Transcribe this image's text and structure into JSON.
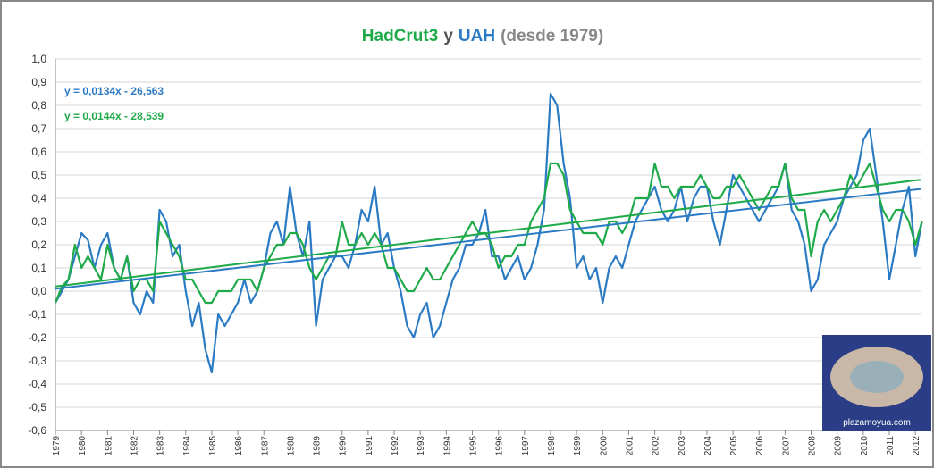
{
  "chart_data": {
    "type": "line",
    "title_joiner": "y",
    "title_suffix": "(desde 1979)",
    "x": [
      1979,
      1979.25,
      1979.5,
      1979.75,
      1980,
      1980.25,
      1980.5,
      1980.75,
      1981,
      1981.25,
      1981.5,
      1981.75,
      1982,
      1982.25,
      1982.5,
      1982.75,
      1983,
      1983.25,
      1983.5,
      1983.75,
      1984,
      1984.25,
      1984.5,
      1984.75,
      1985,
      1985.25,
      1985.5,
      1985.75,
      1986,
      1986.25,
      1986.5,
      1986.75,
      1987,
      1987.25,
      1987.5,
      1987.75,
      1988,
      1988.25,
      1988.5,
      1988.75,
      1989,
      1989.25,
      1989.5,
      1989.75,
      1990,
      1990.25,
      1990.5,
      1990.75,
      1991,
      1991.25,
      1991.5,
      1991.75,
      1992,
      1992.25,
      1992.5,
      1992.75,
      1993,
      1993.25,
      1993.5,
      1993.75,
      1994,
      1994.25,
      1994.5,
      1994.75,
      1995,
      1995.25,
      1995.5,
      1995.75,
      1996,
      1996.25,
      1996.5,
      1996.75,
      1997,
      1997.25,
      1997.5,
      1997.75,
      1998,
      1998.25,
      1998.5,
      1998.75,
      1999,
      1999.25,
      1999.5,
      1999.75,
      2000,
      2000.25,
      2000.5,
      2000.75,
      2001,
      2001.25,
      2001.5,
      2001.75,
      2002,
      2002.25,
      2002.5,
      2002.75,
      2003,
      2003.25,
      2003.5,
      2003.75,
      2004,
      2004.25,
      2004.5,
      2004.75,
      2005,
      2005.25,
      2005.5,
      2005.75,
      2006,
      2006.25,
      2006.5,
      2006.75,
      2007,
      2007.25,
      2007.5,
      2007.75,
      2008,
      2008.25,
      2008.5,
      2008.75,
      2009,
      2009.25,
      2009.5,
      2009.75,
      2010,
      2010.25,
      2010.5,
      2010.75,
      2011,
      2011.25,
      2011.5,
      2011.75,
      2012,
      2012.25
    ],
    "series": [
      {
        "name": "HadCrut3",
        "color": "#1faa4a",
        "values": [
          -0.05,
          0.02,
          0.05,
          0.2,
          0.1,
          0.15,
          0.1,
          0.05,
          0.2,
          0.1,
          0.05,
          0.15,
          0.0,
          0.05,
          0.05,
          0.0,
          0.3,
          0.25,
          0.2,
          0.15,
          0.05,
          0.05,
          0.0,
          -0.05,
          -0.05,
          0.0,
          0.0,
          0.0,
          0.05,
          0.05,
          0.05,
          0.0,
          0.1,
          0.15,
          0.2,
          0.2,
          0.25,
          0.25,
          0.2,
          0.1,
          0.05,
          0.1,
          0.15,
          0.15,
          0.3,
          0.2,
          0.2,
          0.25,
          0.2,
          0.25,
          0.2,
          0.1,
          0.1,
          0.05,
          0.0,
          0.0,
          0.05,
          0.1,
          0.05,
          0.05,
          0.1,
          0.15,
          0.2,
          0.25,
          0.3,
          0.25,
          0.25,
          0.2,
          0.1,
          0.15,
          0.15,
          0.2,
          0.2,
          0.3,
          0.35,
          0.4,
          0.55,
          0.55,
          0.5,
          0.35,
          0.3,
          0.25,
          0.25,
          0.25,
          0.2,
          0.3,
          0.3,
          0.25,
          0.3,
          0.4,
          0.4,
          0.4,
          0.55,
          0.45,
          0.45,
          0.4,
          0.45,
          0.45,
          0.45,
          0.5,
          0.45,
          0.4,
          0.4,
          0.45,
          0.45,
          0.5,
          0.45,
          0.4,
          0.35,
          0.4,
          0.45,
          0.45,
          0.55,
          0.4,
          0.35,
          0.35,
          0.15,
          0.3,
          0.35,
          0.3,
          0.35,
          0.4,
          0.5,
          0.45,
          0.5,
          0.55,
          0.45,
          0.35,
          0.3,
          0.35,
          0.35,
          0.3,
          0.2,
          0.3
        ]
      },
      {
        "name": "UAH",
        "color": "#2b7bc4",
        "values": [
          -0.05,
          0.0,
          0.05,
          0.15,
          0.25,
          0.22,
          0.1,
          0.2,
          0.25,
          0.1,
          0.05,
          0.15,
          -0.05,
          -0.1,
          0.0,
          -0.05,
          0.35,
          0.3,
          0.15,
          0.2,
          0.0,
          -0.15,
          -0.05,
          -0.25,
          -0.35,
          -0.1,
          -0.15,
          -0.1,
          -0.05,
          0.05,
          -0.05,
          0.0,
          0.1,
          0.25,
          0.3,
          0.2,
          0.45,
          0.25,
          0.15,
          0.3,
          -0.15,
          0.05,
          0.1,
          0.15,
          0.15,
          0.1,
          0.2,
          0.35,
          0.3,
          0.45,
          0.2,
          0.25,
          0.1,
          0.0,
          -0.15,
          -0.2,
          -0.1,
          -0.05,
          -0.2,
          -0.15,
          -0.05,
          0.05,
          0.1,
          0.2,
          0.2,
          0.25,
          0.35,
          0.15,
          0.15,
          0.05,
          0.1,
          0.15,
          0.05,
          0.1,
          0.2,
          0.35,
          0.85,
          0.8,
          0.55,
          0.4,
          0.1,
          0.15,
          0.05,
          0.1,
          -0.05,
          0.1,
          0.15,
          0.1,
          0.2,
          0.3,
          0.35,
          0.4,
          0.45,
          0.35,
          0.3,
          0.35,
          0.45,
          0.3,
          0.4,
          0.45,
          0.45,
          0.3,
          0.2,
          0.35,
          0.5,
          0.45,
          0.4,
          0.35,
          0.3,
          0.35,
          0.4,
          0.45,
          0.55,
          0.35,
          0.3,
          0.2,
          0.0,
          0.05,
          0.2,
          0.25,
          0.3,
          0.4,
          0.45,
          0.5,
          0.65,
          0.7,
          0.5,
          0.3,
          0.05,
          0.2,
          0.35,
          0.45,
          0.15,
          0.3
        ]
      }
    ],
    "trendlines": [
      {
        "label": "y = 0,0134x - 26,563",
        "color": "#2b7bc4",
        "x": [
          1979,
          2012.2
        ],
        "values": [
          0.01,
          0.44
        ]
      },
      {
        "label": "y = 0,0144x - 28,539",
        "color": "#1faa4a",
        "x": [
          1979,
          2012.2
        ],
        "values": [
          0.02,
          0.48
        ]
      }
    ],
    "xlim": [
      1979,
      2012.2
    ],
    "xticks": [
      1979,
      1980,
      1981,
      1982,
      1983,
      1984,
      1985,
      1986,
      1987,
      1988,
      1989,
      1990,
      1991,
      1992,
      1993,
      1994,
      1995,
      1996,
      1997,
      1998,
      1999,
      2000,
      2001,
      2002,
      2003,
      2004,
      2005,
      2006,
      2007,
      2008,
      2009,
      2010,
      2011,
      2012
    ],
    "ylim": [
      -0.6,
      1.0
    ],
    "yticks": [
      {
        "value": 1.0,
        "label": "1,0"
      },
      {
        "value": 0.9,
        "label": "0,9"
      },
      {
        "value": 0.8,
        "label": "0,8"
      },
      {
        "value": 0.7,
        "label": "0,7"
      },
      {
        "value": 0.6,
        "label": "0,6"
      },
      {
        "value": 0.5,
        "label": "0,5"
      },
      {
        "value": 0.4,
        "label": "0,4"
      },
      {
        "value": 0.3,
        "label": "0,3"
      },
      {
        "value": 0.2,
        "label": "0,2"
      },
      {
        "value": 0.1,
        "label": "0,1"
      },
      {
        "value": 0.0,
        "label": "0,0"
      },
      {
        "value": -0.1,
        "label": "-0,1"
      },
      {
        "value": -0.2,
        "label": "-0,2"
      },
      {
        "value": -0.3,
        "label": "-0,3"
      },
      {
        "value": -0.4,
        "label": "-0,4"
      },
      {
        "value": -0.5,
        "label": "-0,5"
      },
      {
        "value": -0.6,
        "label": "-0,6"
      }
    ],
    "grid": true,
    "watermark": "plazamoyua.com"
  }
}
